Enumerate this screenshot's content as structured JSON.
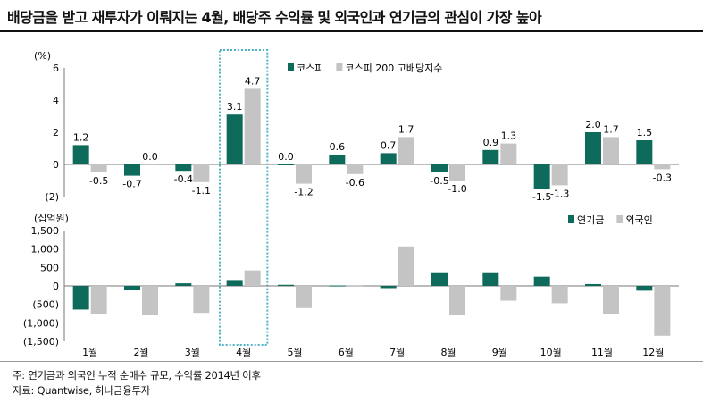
{
  "title": "배당금을 받고 재투자가 이뤄지는 4월, 배당주 수익률 및 외국인과 연기금의 관심이 가장 높아",
  "footnotes": {
    "note": "주: 연기금과 외국인 누적 순매수 규모, 수익률 2014년 이후",
    "source": "자료: Quantwise, 하나금융투자"
  },
  "colors": {
    "primary": "#0e6b5c",
    "secondary": "#c4c4c4",
    "highlight": "#4fb3c8"
  },
  "highlight_category": "4월",
  "chart_data": [
    {
      "type": "bar",
      "unit_label": "(%)",
      "categories": [
        "1월",
        "2월",
        "3월",
        "4월",
        "5월",
        "6월",
        "7월",
        "8월",
        "9월",
        "10월",
        "11월",
        "12월"
      ],
      "series": [
        {
          "name": "코스피",
          "values": [
            1.2,
            -0.7,
            -0.4,
            3.1,
            0.0,
            0.6,
            0.7,
            -0.5,
            0.9,
            -1.5,
            2.0,
            1.5
          ]
        },
        {
          "name": "코스피 200 고배당지수",
          "values": [
            -0.5,
            0.0,
            -1.1,
            4.7,
            -1.2,
            -0.6,
            1.7,
            -1.0,
            1.3,
            -1.3,
            1.7,
            -0.3
          ]
        }
      ],
      "ylim": [
        -2,
        6
      ],
      "yticks": [
        6,
        4,
        2,
        0,
        -2
      ],
      "ytick_labels": [
        "6",
        "4",
        "2",
        "0",
        "(2)"
      ],
      "data_labels": {
        "코스피": [
          "1.2",
          "-0.7",
          "-0.4",
          "3.1",
          "0.0",
          "0.6",
          "0.7",
          "-0.5",
          "0.9",
          "-1.5",
          "2.0",
          "1.5"
        ],
        "코스피 200 고배당지수": [
          "-0.5",
          "0.0",
          "-1.1",
          "4.7",
          "-1.2",
          "-0.6",
          "1.7",
          "-1.0",
          "1.3",
          "-1.3",
          "1.7",
          "-0.3"
        ]
      },
      "legend_position": "top-center"
    },
    {
      "type": "bar",
      "unit_label": "(십억원)",
      "categories": [
        "1월",
        "2월",
        "3월",
        "4월",
        "5월",
        "6월",
        "7월",
        "8월",
        "9월",
        "10월",
        "11월",
        "12월"
      ],
      "series": [
        {
          "name": "연기금",
          "values": [
            -640,
            -100,
            70,
            160,
            30,
            10,
            -60,
            370,
            370,
            250,
            50,
            -130
          ]
        },
        {
          "name": "외국인",
          "values": [
            -750,
            -780,
            -730,
            420,
            -600,
            20,
            1070,
            -780,
            -400,
            -470,
            -750,
            -1350
          ]
        }
      ],
      "ylim": [
        -1500,
        1500
      ],
      "yticks": [
        1500,
        1000,
        500,
        0,
        -500,
        -1000,
        -1500
      ],
      "ytick_labels": [
        "1,500",
        "1,000",
        "500",
        "0",
        "(500)",
        "(1,000)",
        "(1,500)"
      ],
      "legend_position": "top-right"
    }
  ]
}
